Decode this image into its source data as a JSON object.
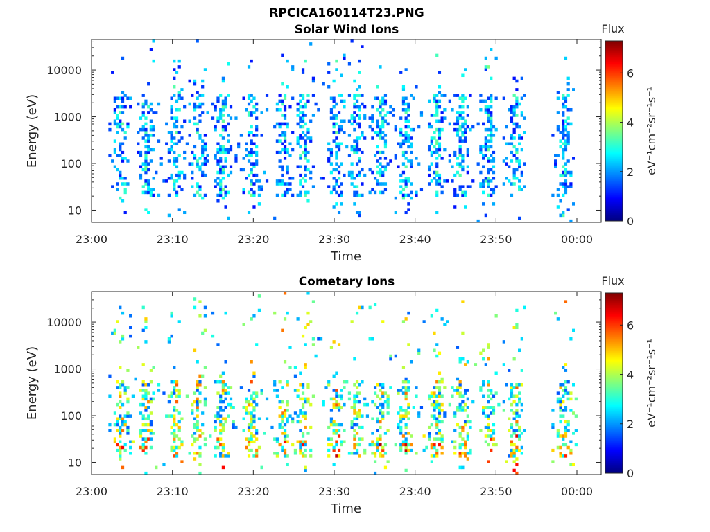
{
  "figure": {
    "title": "RPCICA160114T23.PNG"
  },
  "colorbar": {
    "title": "Flux",
    "label": "eV⁻¹cm⁻²sr⁻¹s⁻¹",
    "ticks": [
      "0",
      "2",
      "4",
      "6"
    ],
    "range": [
      0,
      7.3
    ],
    "colormap": [
      "#00007f",
      "#0000ff",
      "#007fff",
      "#00ffff",
      "#7fff7f",
      "#ffff00",
      "#ff7f00",
      "#ff0000",
      "#7f0000"
    ]
  },
  "chart_data": [
    {
      "type": "heatmap",
      "title": "Solar Wind Ions",
      "xlabel": "Time",
      "ylabel": "Energy (eV)",
      "x_ticks": [
        "23:00",
        "23:10",
        "23:20",
        "23:30",
        "23:40",
        "23:50",
        "00:00"
      ],
      "y_ticks": [
        "10",
        "100",
        "1000",
        "10000"
      ],
      "y_scale": "log",
      "xlim": [
        "23:00",
        "00:03"
      ],
      "ylim": [
        5.5,
        45000
      ],
      "seed": 11,
      "activity_minutes": [
        3.5,
        6.5,
        10.2,
        13.0,
        16.0,
        19.5,
        23.5,
        26.0,
        30.0,
        32.5,
        35.5,
        38.5,
        42.5,
        45.5,
        48.8,
        52.2,
        58.2
      ],
      "gap": [
        53.5,
        56.5
      ],
      "typical_flux": [
        1.0,
        3.2
      ],
      "energy_band": [
        20,
        3000
      ],
      "grid": false
    },
    {
      "type": "heatmap",
      "title": "Cometary Ions",
      "xlabel": "Time",
      "ylabel": "Energy (eV)",
      "x_ticks": [
        "23:00",
        "23:10",
        "23:20",
        "23:30",
        "23:40",
        "23:50",
        "00:00"
      ],
      "y_ticks": [
        "10",
        "100",
        "1000",
        "10000"
      ],
      "y_scale": "log",
      "xlim": [
        "23:00",
        "00:03"
      ],
      "ylim": [
        5.5,
        45000
      ],
      "seed": 29,
      "activity_minutes": [
        3.5,
        6.5,
        10.2,
        13.0,
        16.0,
        19.5,
        23.5,
        26.0,
        30.0,
        32.5,
        35.5,
        38.5,
        42.5,
        45.5,
        48.8,
        52.2,
        58.2
      ],
      "gap": [
        53.5,
        56.5
      ],
      "typical_flux": [
        1.5,
        5.2
      ],
      "energy_band": [
        12,
        600
      ],
      "grid": false
    }
  ]
}
